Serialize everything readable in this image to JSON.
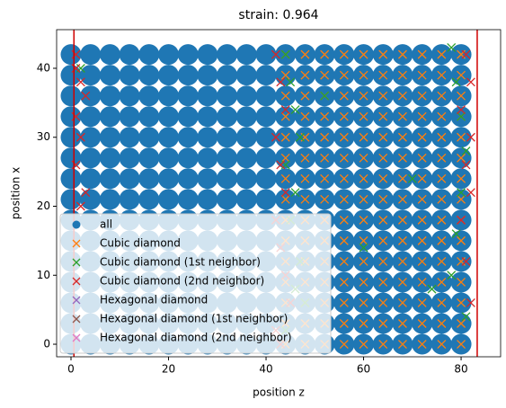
{
  "chart_data": {
    "type": "scatter",
    "title": "strain: 0.964",
    "xlabel": "position z",
    "ylabel": "position x",
    "xlim": [
      -2.95,
      88.1
    ],
    "ylim": [
      -1.82,
      45.6
    ],
    "xticks": [
      0,
      20,
      40,
      60,
      80
    ],
    "yticks": [
      0,
      10,
      20,
      30,
      40
    ],
    "legend_loc": "lower left",
    "vlines": [
      0.6,
      83.3
    ],
    "vline_color": "#d00000",
    "series": [
      {
        "name": "all",
        "color": "#1f77b4",
        "marker": "circle",
        "x": [
          0,
          4,
          8,
          12,
          16,
          20,
          24,
          28,
          32,
          36,
          40,
          44,
          48,
          52,
          56,
          60,
          64,
          68,
          72,
          76,
          80,
          0,
          4,
          8,
          12,
          16,
          20,
          24,
          28,
          32,
          36,
          40,
          44,
          48,
          52,
          56,
          60,
          64,
          68,
          72,
          76,
          80,
          0,
          4,
          8,
          12,
          16,
          20,
          24,
          28,
          32,
          36,
          40,
          44,
          48,
          52,
          56,
          60,
          64,
          68,
          72,
          76,
          80,
          0,
          4,
          8,
          12,
          16,
          20,
          24,
          28,
          32,
          36,
          40,
          44,
          48,
          52,
          56,
          60,
          64,
          68,
          72,
          76,
          80,
          0,
          4,
          8,
          12,
          16,
          20,
          24,
          28,
          32,
          36,
          40,
          44,
          48,
          52,
          56,
          60,
          64,
          68,
          72,
          76,
          80,
          0,
          4,
          8,
          12,
          16,
          20,
          24,
          28,
          32,
          36,
          40,
          44,
          48,
          52,
          56,
          60,
          64,
          68,
          72,
          76,
          80,
          0,
          4,
          8,
          12,
          16,
          20,
          24,
          28,
          32,
          36,
          40,
          44,
          48,
          52,
          56,
          60,
          64,
          68,
          72,
          76,
          80,
          0,
          4,
          8,
          12,
          16,
          20,
          24,
          28,
          32,
          36,
          40,
          44,
          48,
          52,
          56,
          60,
          64,
          68,
          72,
          76,
          80,
          0,
          4,
          8,
          12,
          16,
          20,
          24,
          28,
          32,
          36,
          40,
          44,
          48,
          52,
          56,
          60,
          64,
          68,
          72,
          76,
          80,
          0,
          4,
          8,
          12,
          16,
          20,
          24,
          28,
          32,
          36,
          40,
          44,
          48,
          52,
          56,
          60,
          64,
          68,
          72,
          76,
          80,
          0,
          4,
          8,
          12,
          16,
          20,
          24,
          28,
          32,
          36,
          40,
          44,
          48,
          52,
          56,
          60,
          64,
          68,
          72,
          76,
          80,
          0,
          4,
          8,
          12,
          16,
          20,
          24,
          28,
          32,
          36,
          40,
          44,
          48,
          52,
          56,
          60,
          64,
          68,
          72,
          76,
          80,
          0,
          4,
          8,
          12,
          16,
          20,
          24,
          28,
          32,
          36,
          40,
          44,
          48,
          52,
          56,
          60,
          64,
          68,
          72,
          76,
          80,
          0,
          4,
          8,
          12,
          16,
          20,
          24,
          28,
          32,
          36,
          40,
          44,
          48,
          52,
          56,
          60,
          64,
          68,
          72,
          76,
          80,
          0,
          4,
          8,
          12,
          16,
          20,
          24,
          28,
          32,
          36,
          40,
          44,
          48,
          52,
          56,
          60,
          64,
          68,
          72,
          76,
          80
        ],
        "values": [
          0,
          0,
          0,
          0,
          0,
          0,
          0,
          0,
          0,
          0,
          0,
          0,
          0,
          0,
          0,
          0,
          0,
          0,
          0,
          0,
          0,
          3,
          3,
          3,
          3,
          3,
          3,
          3,
          3,
          3,
          3,
          3,
          3,
          3,
          3,
          3,
          3,
          3,
          3,
          3,
          3,
          3,
          6,
          6,
          6,
          6,
          6,
          6,
          6,
          6,
          6,
          6,
          6,
          6,
          6,
          6,
          6,
          6,
          6,
          6,
          6,
          6,
          6,
          9,
          9,
          9,
          9,
          9,
          9,
          9,
          9,
          9,
          9,
          9,
          9,
          9,
          9,
          9,
          9,
          9,
          9,
          9,
          9,
          9,
          12,
          12,
          12,
          12,
          12,
          12,
          12,
          12,
          12,
          12,
          12,
          12,
          12,
          12,
          12,
          12,
          12,
          12,
          12,
          12,
          12,
          15,
          15,
          15,
          15,
          15,
          15,
          15,
          15,
          15,
          15,
          15,
          15,
          15,
          15,
          15,
          15,
          15,
          15,
          15,
          15,
          15,
          18,
          18,
          18,
          18,
          18,
          18,
          18,
          18,
          18,
          18,
          18,
          18,
          18,
          18,
          18,
          18,
          18,
          18,
          18,
          18,
          18,
          21,
          21,
          21,
          21,
          21,
          21,
          21,
          21,
          21,
          21,
          21,
          21,
          21,
          21,
          21,
          21,
          21,
          21,
          21,
          21,
          21,
          24,
          24,
          24,
          24,
          24,
          24,
          24,
          24,
          24,
          24,
          24,
          24,
          24,
          24,
          24,
          24,
          24,
          24,
          24,
          24,
          24,
          27,
          27,
          27,
          27,
          27,
          27,
          27,
          27,
          27,
          27,
          27,
          27,
          27,
          27,
          27,
          27,
          27,
          27,
          27,
          27,
          27,
          30,
          30,
          30,
          30,
          30,
          30,
          30,
          30,
          30,
          30,
          30,
          30,
          30,
          30,
          30,
          30,
          30,
          30,
          30,
          30,
          30,
          33,
          33,
          33,
          33,
          33,
          33,
          33,
          33,
          33,
          33,
          33,
          33,
          33,
          33,
          33,
          33,
          33,
          33,
          33,
          33,
          33,
          36,
          36,
          36,
          36,
          36,
          36,
          36,
          36,
          36,
          36,
          36,
          36,
          36,
          36,
          36,
          36,
          36,
          36,
          36,
          36,
          36,
          39,
          39,
          39,
          39,
          39,
          39,
          39,
          39,
          39,
          39,
          39,
          39,
          39,
          39,
          39,
          39,
          39,
          39,
          39,
          39,
          39,
          42,
          42,
          42,
          42,
          42,
          42,
          42,
          42,
          42,
          42,
          42,
          42,
          42,
          42,
          42,
          42,
          42,
          42,
          42,
          42,
          42
        ]
      },
      {
        "name": "Cubic diamond",
        "color": "#ff7f0e",
        "marker": "x",
        "x": [
          44,
          48,
          52,
          56,
          60,
          64,
          68,
          72,
          76,
          80,
          44,
          48,
          52,
          56,
          60,
          64,
          68,
          72,
          76,
          80,
          44,
          48,
          52,
          56,
          60,
          64,
          68,
          72,
          76,
          80,
          44,
          48,
          52,
          56,
          60,
          64,
          68,
          72,
          76,
          80,
          44,
          48,
          52,
          56,
          60,
          64,
          68,
          72,
          76,
          80,
          44,
          48,
          52,
          56,
          60,
          64,
          68,
          72,
          76,
          80,
          44,
          48,
          52,
          56,
          60,
          64,
          68,
          72,
          76,
          80,
          44,
          48,
          52,
          56,
          60,
          64,
          68,
          72,
          76,
          80,
          44,
          48,
          52,
          56,
          60,
          64,
          68,
          72,
          76,
          80,
          44,
          48,
          52,
          56,
          60,
          64,
          68,
          72,
          76,
          80,
          44,
          48,
          52,
          56,
          60,
          64,
          68,
          72,
          76,
          80,
          44,
          48,
          52,
          56,
          60,
          64,
          68,
          72,
          76,
          80,
          44,
          48,
          52,
          56,
          60,
          64,
          68,
          72,
          76,
          80,
          44,
          48,
          52,
          56,
          60,
          64,
          68,
          72,
          76,
          80,
          44,
          48,
          52,
          56,
          60,
          64,
          68,
          72,
          76,
          80
        ],
        "values": [
          0,
          0,
          0,
          0,
          0,
          0,
          0,
          0,
          0,
          0,
          3,
          3,
          3,
          3,
          3,
          3,
          3,
          3,
          3,
          3,
          6,
          6,
          6,
          6,
          6,
          6,
          6,
          6,
          6,
          6,
          9,
          9,
          9,
          9,
          9,
          9,
          9,
          9,
          9,
          9,
          12,
          12,
          12,
          12,
          12,
          12,
          12,
          12,
          12,
          12,
          15,
          15,
          15,
          15,
          15,
          15,
          15,
          15,
          15,
          15,
          18,
          18,
          18,
          18,
          18,
          18,
          18,
          18,
          18,
          18,
          21,
          21,
          21,
          21,
          21,
          21,
          21,
          21,
          21,
          21,
          24,
          24,
          24,
          24,
          24,
          24,
          24,
          24,
          24,
          24,
          27,
          27,
          27,
          27,
          27,
          27,
          27,
          27,
          27,
          27,
          30,
          30,
          30,
          30,
          30,
          30,
          30,
          30,
          30,
          30,
          33,
          33,
          33,
          33,
          33,
          33,
          33,
          33,
          33,
          33,
          36,
          36,
          36,
          36,
          36,
          36,
          36,
          36,
          36,
          36,
          39,
          39,
          39,
          39,
          39,
          39,
          39,
          39,
          39,
          39,
          42,
          42,
          42,
          42,
          42,
          42,
          42,
          42,
          42,
          42
        ]
      },
      {
        "name": "Cubic diamond (1st neighbor)",
        "color": "#2ca02c",
        "marker": "x",
        "x": [
          2,
          44,
          45,
          46,
          47,
          44,
          46,
          45,
          47,
          48,
          52,
          60,
          70,
          74,
          78,
          79,
          80,
          81,
          80,
          79,
          78,
          81,
          44,
          46
        ],
        "values": [
          40,
          42,
          38,
          34,
          30,
          26,
          22,
          18,
          12,
          6,
          36,
          14,
          24,
          8,
          43,
          38,
          33,
          28,
          22,
          16,
          10,
          4,
          2,
          8
        ]
      },
      {
        "name": "Cubic diamond (2nd neighbor)",
        "color": "#d62728",
        "marker": "x",
        "x": [
          1,
          2,
          3,
          1,
          2,
          1,
          3,
          2,
          42,
          43,
          44,
          42,
          43,
          44,
          42,
          43,
          44,
          45,
          42,
          43,
          81,
          82,
          80,
          82,
          81,
          82,
          80,
          81,
          82,
          1
        ],
        "values": [
          42,
          38,
          36,
          33,
          30,
          26,
          22,
          20,
          42,
          38,
          34,
          30,
          26,
          22,
          18,
          14,
          10,
          6,
          2,
          0,
          42,
          38,
          34,
          30,
          26,
          22,
          18,
          12,
          6,
          40
        ]
      },
      {
        "name": "Hexagonal diamond",
        "color": "#9467bd",
        "marker": "x",
        "x": [],
        "values": []
      },
      {
        "name": "Hexagonal diamond (1st neighbor)",
        "color": "#8c564b",
        "marker": "x",
        "x": [],
        "values": []
      },
      {
        "name": "Hexagonal diamond (2nd neighbor)",
        "color": "#e377c2",
        "marker": "x",
        "x": [],
        "values": []
      }
    ]
  }
}
